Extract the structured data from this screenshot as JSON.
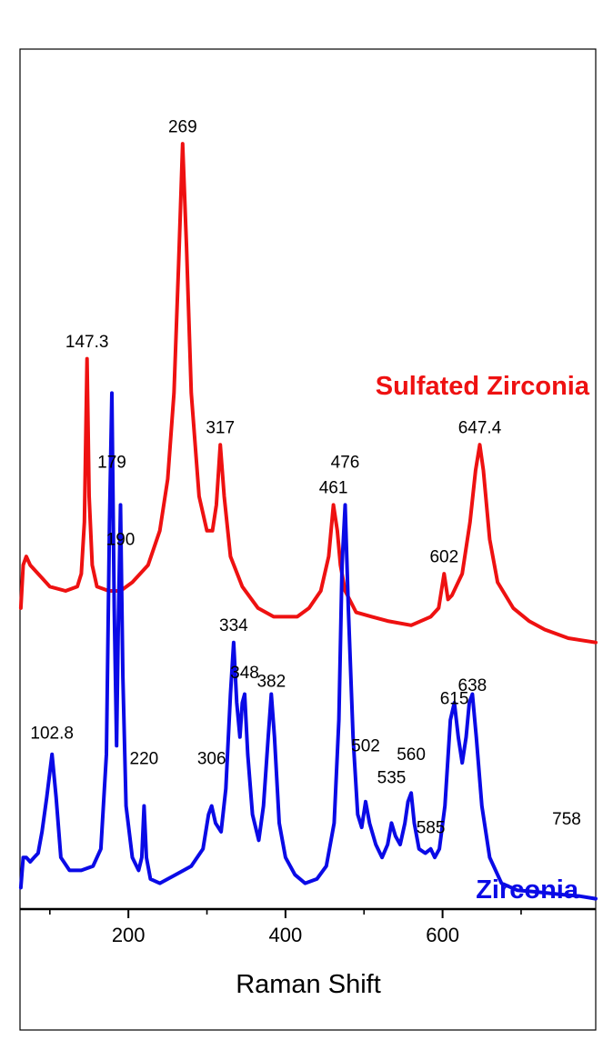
{
  "chart_data": {
    "type": "line",
    "title": "",
    "xlabel": "Raman Shift",
    "ylabel": "",
    "xlim": [
      62,
      795
    ],
    "ylim": [
      0,
      1
    ],
    "xticks": [
      200,
      400,
      600
    ],
    "minor_xticks": [
      100,
      300,
      500,
      700
    ],
    "grid": false,
    "series": [
      {
        "name": "Sulfated Zirconia",
        "color": "#ee1111",
        "points": [
          [
            63,
            0.35
          ],
          [
            66,
            0.4
          ],
          [
            70,
            0.41
          ],
          [
            75,
            0.4
          ],
          [
            85,
            0.39
          ],
          [
            100,
            0.375
          ],
          [
            120,
            0.37
          ],
          [
            135,
            0.375
          ],
          [
            140,
            0.39
          ],
          [
            144,
            0.45
          ],
          [
            147.3,
            0.64
          ],
          [
            150,
            0.48
          ],
          [
            154,
            0.4
          ],
          [
            160,
            0.375
          ],
          [
            175,
            0.37
          ],
          [
            190,
            0.37
          ],
          [
            205,
            0.38
          ],
          [
            225,
            0.4
          ],
          [
            240,
            0.44
          ],
          [
            250,
            0.5
          ],
          [
            258,
            0.6
          ],
          [
            264,
            0.75
          ],
          [
            269,
            0.89
          ],
          [
            274,
            0.77
          ],
          [
            280,
            0.6
          ],
          [
            290,
            0.48
          ],
          [
            300,
            0.44
          ],
          [
            307,
            0.44
          ],
          [
            312,
            0.47
          ],
          [
            317,
            0.54
          ],
          [
            322,
            0.48
          ],
          [
            330,
            0.41
          ],
          [
            345,
            0.375
          ],
          [
            365,
            0.35
          ],
          [
            385,
            0.34
          ],
          [
            400,
            0.34
          ],
          [
            415,
            0.34
          ],
          [
            430,
            0.35
          ],
          [
            445,
            0.37
          ],
          [
            455,
            0.41
          ],
          [
            461,
            0.47
          ],
          [
            466,
            0.44
          ],
          [
            470,
            0.4
          ],
          [
            476,
            0.37
          ],
          [
            490,
            0.345
          ],
          [
            510,
            0.34
          ],
          [
            530,
            0.335
          ],
          [
            560,
            0.33
          ],
          [
            585,
            0.34
          ],
          [
            595,
            0.35
          ],
          [
            602,
            0.39
          ],
          [
            607,
            0.36
          ],
          [
            612,
            0.365
          ],
          [
            625,
            0.39
          ],
          [
            635,
            0.45
          ],
          [
            642,
            0.51
          ],
          [
            647.4,
            0.54
          ],
          [
            652,
            0.51
          ],
          [
            660,
            0.43
          ],
          [
            670,
            0.38
          ],
          [
            690,
            0.35
          ],
          [
            710,
            0.335
          ],
          [
            730,
            0.325
          ],
          [
            760,
            0.315
          ],
          [
            795,
            0.31
          ]
        ]
      },
      {
        "name": "Zirconia",
        "color": "#0a0ae6",
        "points": [
          [
            63,
            0.025
          ],
          [
            66,
            0.06
          ],
          [
            70,
            0.06
          ],
          [
            75,
            0.055
          ],
          [
            80,
            0.06
          ],
          [
            85,
            0.065
          ],
          [
            90,
            0.09
          ],
          [
            96,
            0.13
          ],
          [
            102.8,
            0.18
          ],
          [
            108,
            0.13
          ],
          [
            114,
            0.06
          ],
          [
            125,
            0.045
          ],
          [
            140,
            0.045
          ],
          [
            155,
            0.05
          ],
          [
            165,
            0.07
          ],
          [
            172,
            0.18
          ],
          [
            176,
            0.45
          ],
          [
            179,
            0.6
          ],
          [
            182,
            0.35
          ],
          [
            185,
            0.19
          ],
          [
            187,
            0.32
          ],
          [
            190,
            0.47
          ],
          [
            193,
            0.27
          ],
          [
            197,
            0.12
          ],
          [
            205,
            0.06
          ],
          [
            213,
            0.045
          ],
          [
            217,
            0.06
          ],
          [
            220,
            0.12
          ],
          [
            223,
            0.06
          ],
          [
            228,
            0.035
          ],
          [
            240,
            0.03
          ],
          [
            260,
            0.04
          ],
          [
            280,
            0.05
          ],
          [
            295,
            0.07
          ],
          [
            302,
            0.11
          ],
          [
            306,
            0.12
          ],
          [
            311,
            0.1
          ],
          [
            318,
            0.09
          ],
          [
            324,
            0.14
          ],
          [
            330,
            0.25
          ],
          [
            334,
            0.31
          ],
          [
            338,
            0.24
          ],
          [
            342,
            0.2
          ],
          [
            345,
            0.24
          ],
          [
            348,
            0.25
          ],
          [
            352,
            0.18
          ],
          [
            358,
            0.11
          ],
          [
            366,
            0.08
          ],
          [
            372,
            0.12
          ],
          [
            378,
            0.2
          ],
          [
            382,
            0.25
          ],
          [
            386,
            0.2
          ],
          [
            392,
            0.1
          ],
          [
            400,
            0.06
          ],
          [
            412,
            0.04
          ],
          [
            425,
            0.03
          ],
          [
            440,
            0.035
          ],
          [
            452,
            0.05
          ],
          [
            462,
            0.1
          ],
          [
            468,
            0.22
          ],
          [
            472,
            0.4
          ],
          [
            476,
            0.47
          ],
          [
            480,
            0.35
          ],
          [
            486,
            0.2
          ],
          [
            492,
            0.11
          ],
          [
            497,
            0.095
          ],
          [
            502,
            0.125
          ],
          [
            507,
            0.1
          ],
          [
            515,
            0.075
          ],
          [
            523,
            0.06
          ],
          [
            530,
            0.075
          ],
          [
            535,
            0.1
          ],
          [
            540,
            0.085
          ],
          [
            546,
            0.075
          ],
          [
            552,
            0.1
          ],
          [
            556,
            0.125
          ],
          [
            560,
            0.135
          ],
          [
            564,
            0.1
          ],
          [
            570,
            0.07
          ],
          [
            578,
            0.065
          ],
          [
            585,
            0.07
          ],
          [
            590,
            0.06
          ],
          [
            596,
            0.07
          ],
          [
            603,
            0.12
          ],
          [
            610,
            0.22
          ],
          [
            615,
            0.24
          ],
          [
            620,
            0.2
          ],
          [
            625,
            0.17
          ],
          [
            630,
            0.2
          ],
          [
            634,
            0.24
          ],
          [
            638,
            0.25
          ],
          [
            643,
            0.2
          ],
          [
            650,
            0.12
          ],
          [
            660,
            0.06
          ],
          [
            675,
            0.03
          ],
          [
            695,
            0.022
          ],
          [
            720,
            0.02
          ],
          [
            750,
            0.017
          ],
          [
            775,
            0.015
          ],
          [
            795,
            0.012
          ]
        ]
      }
    ],
    "peak_labels": [
      {
        "text": "269",
        "x": 269,
        "y": 0.895,
        "series": 0
      },
      {
        "text": "147.3",
        "x": 147.3,
        "y": 0.645,
        "series": 0
      },
      {
        "text": "317",
        "x": 317,
        "y": 0.545,
        "series": 0
      },
      {
        "text": "647.4",
        "x": 647.4,
        "y": 0.545,
        "series": 0
      },
      {
        "text": "461",
        "x": 461,
        "y": 0.475,
        "series": 0
      },
      {
        "text": "476",
        "x": 476,
        "y": 0.505,
        "series": 1
      },
      {
        "text": "602",
        "x": 602,
        "y": 0.395,
        "series": 0
      },
      {
        "text": "179",
        "x": 179,
        "y": 0.505,
        "series": 1
      },
      {
        "text": "190",
        "x": 190,
        "y": 0.415,
        "series": 1
      },
      {
        "text": "334",
        "x": 334,
        "y": 0.315,
        "series": 1
      },
      {
        "text": "348",
        "x": 348,
        "y": 0.26,
        "series": 1
      },
      {
        "text": "382",
        "x": 382,
        "y": 0.25,
        "series": 1
      },
      {
        "text": "102.8",
        "x": 102.8,
        "y": 0.19,
        "series": 1
      },
      {
        "text": "220",
        "x": 220,
        "y": 0.16,
        "series": 1
      },
      {
        "text": "306",
        "x": 306,
        "y": 0.16,
        "series": 1
      },
      {
        "text": "502",
        "x": 502,
        "y": 0.175,
        "series": 1
      },
      {
        "text": "535",
        "x": 535,
        "y": 0.138,
        "series": 1
      },
      {
        "text": "560",
        "x": 560,
        "y": 0.165,
        "series": 1
      },
      {
        "text": "585",
        "x": 585,
        "y": 0.08,
        "series": 1
      },
      {
        "text": "615",
        "x": 615,
        "y": 0.23,
        "series": 1
      },
      {
        "text": "638",
        "x": 638,
        "y": 0.245,
        "series": 1
      },
      {
        "text": "758",
        "x": 758,
        "y": 0.09,
        "series": 1
      }
    ],
    "series_labels": [
      {
        "text": "Sulfated Zirconia",
        "series": 0
      },
      {
        "text": "Zirconia",
        "series": 1
      }
    ]
  }
}
